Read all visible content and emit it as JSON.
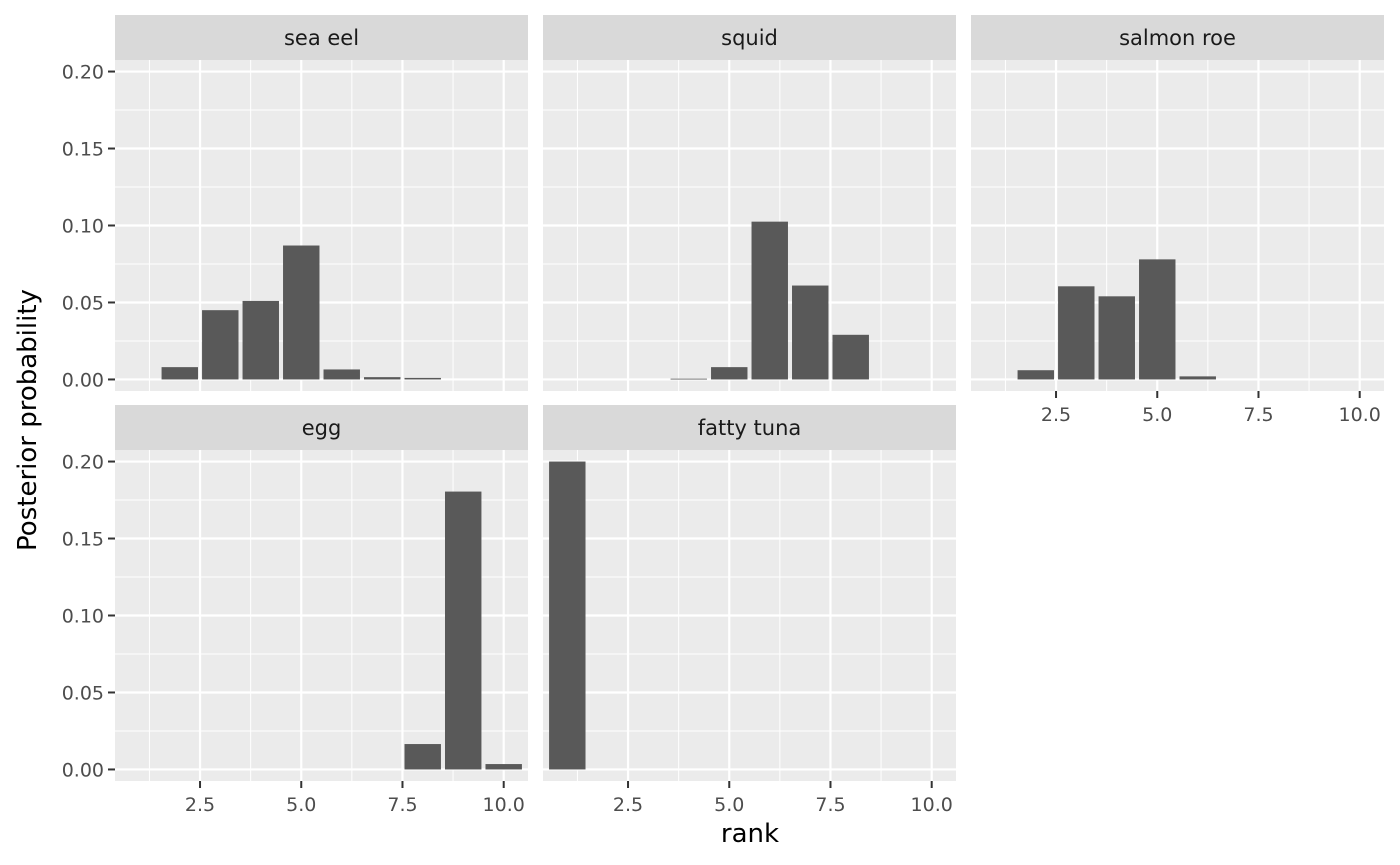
{
  "chart_data": {
    "type": "bar",
    "layout": "faceted",
    "xlabel": "rank",
    "ylabel": "Posterior probability",
    "xlim": [
      0.4,
      10.6
    ],
    "ylim": [
      -0.0075,
      0.2075
    ],
    "x_ticks": [
      2.5,
      5.0,
      7.5,
      10.0
    ],
    "x_tick_labels": [
      "2.5",
      "5.0",
      "7.5",
      "10.0"
    ],
    "y_ticks": [
      0,
      0.05,
      0.1,
      0.15,
      0.2
    ],
    "y_tick_labels": [
      "0.00",
      "0.05",
      "0.10",
      "0.15",
      "0.20"
    ],
    "grid": true,
    "colors": {
      "bar": "#595959",
      "panel_bg": "#ebebeb",
      "strip_bg": "#d9d9d9",
      "grid": "#ffffff"
    },
    "facets": [
      {
        "label": "sea eel",
        "x": [
          2,
          3,
          4,
          5,
          6,
          7,
          8
        ],
        "values": [
          0.008,
          0.045,
          0.051,
          0.087,
          0.0065,
          0.0015,
          0.001
        ]
      },
      {
        "label": "squid",
        "x": [
          4,
          5,
          6,
          7,
          8
        ],
        "values": [
          0.0005,
          0.008,
          0.1025,
          0.061,
          0.029
        ]
      },
      {
        "label": "salmon roe",
        "x": [
          2,
          3,
          4,
          5,
          6
        ],
        "values": [
          0.006,
          0.0605,
          0.054,
          0.078,
          0.002
        ]
      },
      {
        "label": "egg",
        "x": [
          8,
          9,
          10
        ],
        "values": [
          0.0165,
          0.1805,
          0.0035
        ]
      },
      {
        "label": "fatty tuna",
        "x": [
          1
        ],
        "values": [
          0.2
        ]
      }
    ]
  }
}
